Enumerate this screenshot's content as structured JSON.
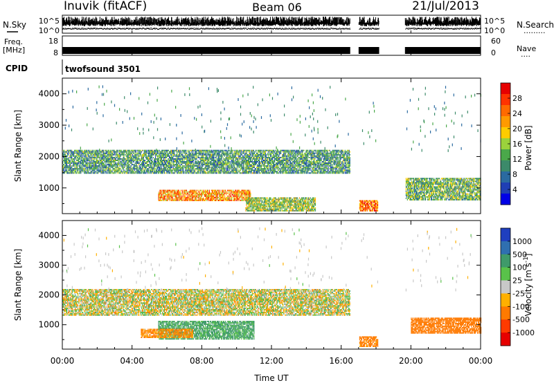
{
  "header": {
    "station": "Inuvik (fitACF)",
    "beam": "Beam 06",
    "date": "21/Jul/2013"
  },
  "noise_panel": {
    "left_label": "N.Sky",
    "right_label": "N.Search",
    "right_label_dots": ".........",
    "left_ticks": [
      "10^5",
      "10^0"
    ],
    "right_ticks": [
      "10^5",
      "10^0"
    ]
  },
  "freq_panel": {
    "left_label_line1": "Freq.",
    "left_label_line2": "[MHz]",
    "left_ticks": [
      "18",
      "8"
    ],
    "right_ticks": [
      "60",
      "0"
    ],
    "right_label": "Nave",
    "right_label_dots": "...."
  },
  "cpid_panel": {
    "label": "CPID",
    "value": "twofsound 3501"
  },
  "x_axis": {
    "title": "Time UT",
    "ticks": [
      "00:00",
      "04:00",
      "08:00",
      "12:00",
      "16:00",
      "20:00",
      "00:00"
    ]
  },
  "power_panel": {
    "ylabel": "Slant Range [km]",
    "yticks": [
      "4000",
      "3000",
      "2000",
      "1000"
    ],
    "colorbar_label": "Power [dB]",
    "colorbar_ticks": [
      "28",
      "24",
      "20",
      "16",
      "12",
      "8",
      "4"
    ],
    "colorbar_colors": [
      "#e60000",
      "#ff3300",
      "#ff6a00",
      "#ff9a00",
      "#ffcc00",
      "#9bd23c",
      "#4aa84a",
      "#3c8a6a",
      "#2a6aa0",
      "#1f3fb4",
      "#0000e6"
    ]
  },
  "velocity_panel": {
    "ylabel": "Slant Range [km]",
    "yticks": [
      "4000",
      "3000",
      "2000",
      "1000"
    ],
    "colorbar_label": "Velocity [m s",
    "colorbar_label_sup": "-1",
    "colorbar_label_end": "]",
    "colorbar_ticks": [
      "1000",
      "500",
      "100",
      "25",
      "-25",
      "-100",
      "-500",
      "-1000"
    ],
    "colorbar_colors": [
      "#1f3fbf",
      "#2f6fb0",
      "#3f9a6a",
      "#59c24a",
      "#c8c8c8",
      "#ffb000",
      "#ff7a00",
      "#ff3a00",
      "#e60000"
    ]
  },
  "chart_data": [
    {
      "type": "heatmap",
      "title": "Power [dB]",
      "xlabel": "Time UT",
      "ylabel": "Slant Range [km]",
      "xlim": [
        "00:00",
        "24:00"
      ],
      "ylim": [
        180,
        4500
      ],
      "color_range": [
        0,
        30
      ],
      "data_gaps_utc": [
        [
          "16:30",
          "17:00"
        ],
        [
          "18:10",
          "19:40"
        ]
      ],
      "regions": [
        {
          "t_start": 0.0,
          "t_end": 16.5,
          "range_low": 1450,
          "range_high": 2200,
          "power": 10
        },
        {
          "t_start": 5.5,
          "t_end": 10.8,
          "range_low": 580,
          "range_high": 900,
          "power": 22
        },
        {
          "t_start": 10.5,
          "t_end": 14.5,
          "range_low": 250,
          "range_high": 700,
          "power": 14
        },
        {
          "t_start": 17.0,
          "t_end": 18.1,
          "range_low": 250,
          "range_high": 600,
          "power": 24
        },
        {
          "t_start": 19.7,
          "t_end": 24.0,
          "range_low": 600,
          "range_high": 1300,
          "power": 12
        }
      ]
    },
    {
      "type": "heatmap",
      "title": "Velocity [m s-1]",
      "xlabel": "Time UT",
      "ylabel": "Slant Range [km]",
      "xlim": [
        "00:00",
        "24:00"
      ],
      "ylim": [
        180,
        4500
      ],
      "color_range": [
        -1000,
        1000
      ],
      "regions": [
        {
          "t_start": 0.0,
          "t_end": 16.5,
          "range_low": 1300,
          "range_high": 2200,
          "velocity": 0
        },
        {
          "t_start": 5.5,
          "t_end": 11.0,
          "range_low": 500,
          "range_high": 1100,
          "velocity": 150
        },
        {
          "t_start": 4.5,
          "t_end": 7.5,
          "range_low": 550,
          "range_high": 850,
          "velocity": -150
        },
        {
          "t_start": 17.0,
          "t_end": 18.1,
          "range_low": 250,
          "range_high": 600,
          "velocity": -200
        },
        {
          "t_start": 20.0,
          "t_end": 24.0,
          "range_low": 700,
          "range_high": 1200,
          "velocity": -300
        }
      ]
    }
  ]
}
